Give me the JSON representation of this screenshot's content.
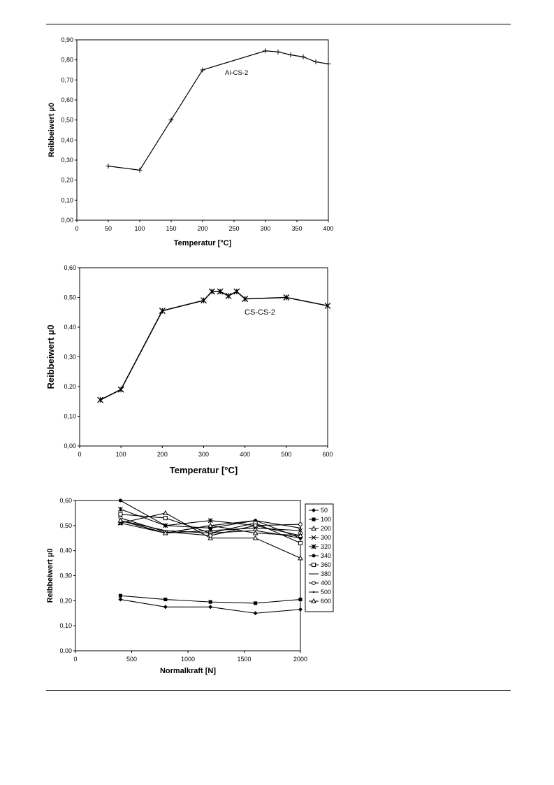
{
  "chart_data": [
    {
      "type": "line",
      "title": "",
      "xlabel": "Temperatur [°C]",
      "ylabel": "Reibbeiwert µ0",
      "xlim": [
        0,
        400
      ],
      "ylim": [
        0,
        0.9
      ],
      "x_ticks": [
        "0",
        "50",
        "100",
        "150",
        "200",
        "250",
        "300",
        "350",
        "400"
      ],
      "y_ticks": [
        "0,00",
        "0,10",
        "0,20",
        "0,30",
        "0,40",
        "0,50",
        "0,60",
        "0,70",
        "0,80",
        "0,90"
      ],
      "annotation": "Al-CS-2",
      "series": [
        {
          "name": "Al-CS-2",
          "marker": "plus",
          "x": [
            50,
            100,
            150,
            200,
            300,
            320,
            340,
            360,
            380,
            400
          ],
          "values": [
            0.27,
            0.25,
            0.5,
            0.75,
            0.845,
            0.84,
            0.825,
            0.815,
            0.79,
            0.78
          ]
        }
      ]
    },
    {
      "type": "line",
      "title": "",
      "xlabel": "Temperatur [°C]",
      "ylabel": "Reibbeiwert µ0",
      "xlim": [
        0,
        600
      ],
      "ylim": [
        0,
        0.6
      ],
      "x_ticks": [
        "0",
        "100",
        "200",
        "300",
        "400",
        "500",
        "600"
      ],
      "y_ticks": [
        "0,00",
        "0,10",
        "0,20",
        "0,30",
        "0,40",
        "0,50",
        "0,60"
      ],
      "annotation": "CS-CS-2",
      "series": [
        {
          "name": "CS-CS-2",
          "marker": "star",
          "x": [
            50,
            100,
            200,
            300,
            320,
            340,
            360,
            380,
            400,
            500,
            600
          ],
          "values": [
            0.155,
            0.19,
            0.455,
            0.49,
            0.52,
            0.52,
            0.505,
            0.52,
            0.495,
            0.5,
            0.472
          ]
        }
      ]
    },
    {
      "type": "line",
      "title": "",
      "xlabel": "Normalkraft [N]",
      "ylabel": "Reibbeiwert µ0",
      "xlim": [
        0,
        2000
      ],
      "ylim": [
        0,
        0.6
      ],
      "x_ticks": [
        "0",
        "500",
        "1000",
        "1500",
        "2000"
      ],
      "y_ticks": [
        "0,00",
        "0,10",
        "0,20",
        "0,30",
        "0,40",
        "0,50",
        "0,60"
      ],
      "legend_position": "right",
      "x": [
        400,
        800,
        1200,
        1600,
        2000
      ],
      "series": [
        {
          "name": "50",
          "marker": "diamond-filled",
          "values": [
            0.205,
            0.175,
            0.175,
            0.15,
            0.165
          ]
        },
        {
          "name": "100",
          "marker": "square-filled",
          "values": [
            0.22,
            0.205,
            0.195,
            0.19,
            0.205
          ]
        },
        {
          "name": "200",
          "marker": "triangle-open",
          "values": [
            0.51,
            0.55,
            0.45,
            0.45,
            0.37
          ]
        },
        {
          "name": "300",
          "marker": "x",
          "values": [
            0.51,
            0.47,
            0.48,
            0.49,
            0.48
          ]
        },
        {
          "name": "320",
          "marker": "star",
          "values": [
            0.565,
            0.5,
            0.52,
            0.5,
            0.46
          ]
        },
        {
          "name": "340",
          "marker": "circle-filled",
          "values": [
            0.6,
            0.5,
            0.49,
            0.52,
            0.45
          ]
        },
        {
          "name": "360",
          "marker": "square-open",
          "values": [
            0.545,
            0.53,
            0.47,
            0.51,
            0.43
          ]
        },
        {
          "name": "380",
          "marker": "none",
          "values": [
            0.52,
            0.48,
            0.47,
            0.48,
            0.45
          ]
        },
        {
          "name": "400",
          "marker": "circle-open",
          "values": [
            0.53,
            0.475,
            0.46,
            0.5,
            0.505
          ]
        },
        {
          "name": "500",
          "marker": "dot",
          "values": [
            0.52,
            0.47,
            0.5,
            0.52,
            0.49
          ]
        },
        {
          "name": "600",
          "marker": "triangle-open",
          "values": [
            0.52,
            0.47,
            0.5,
            0.47,
            0.46
          ]
        }
      ]
    }
  ]
}
